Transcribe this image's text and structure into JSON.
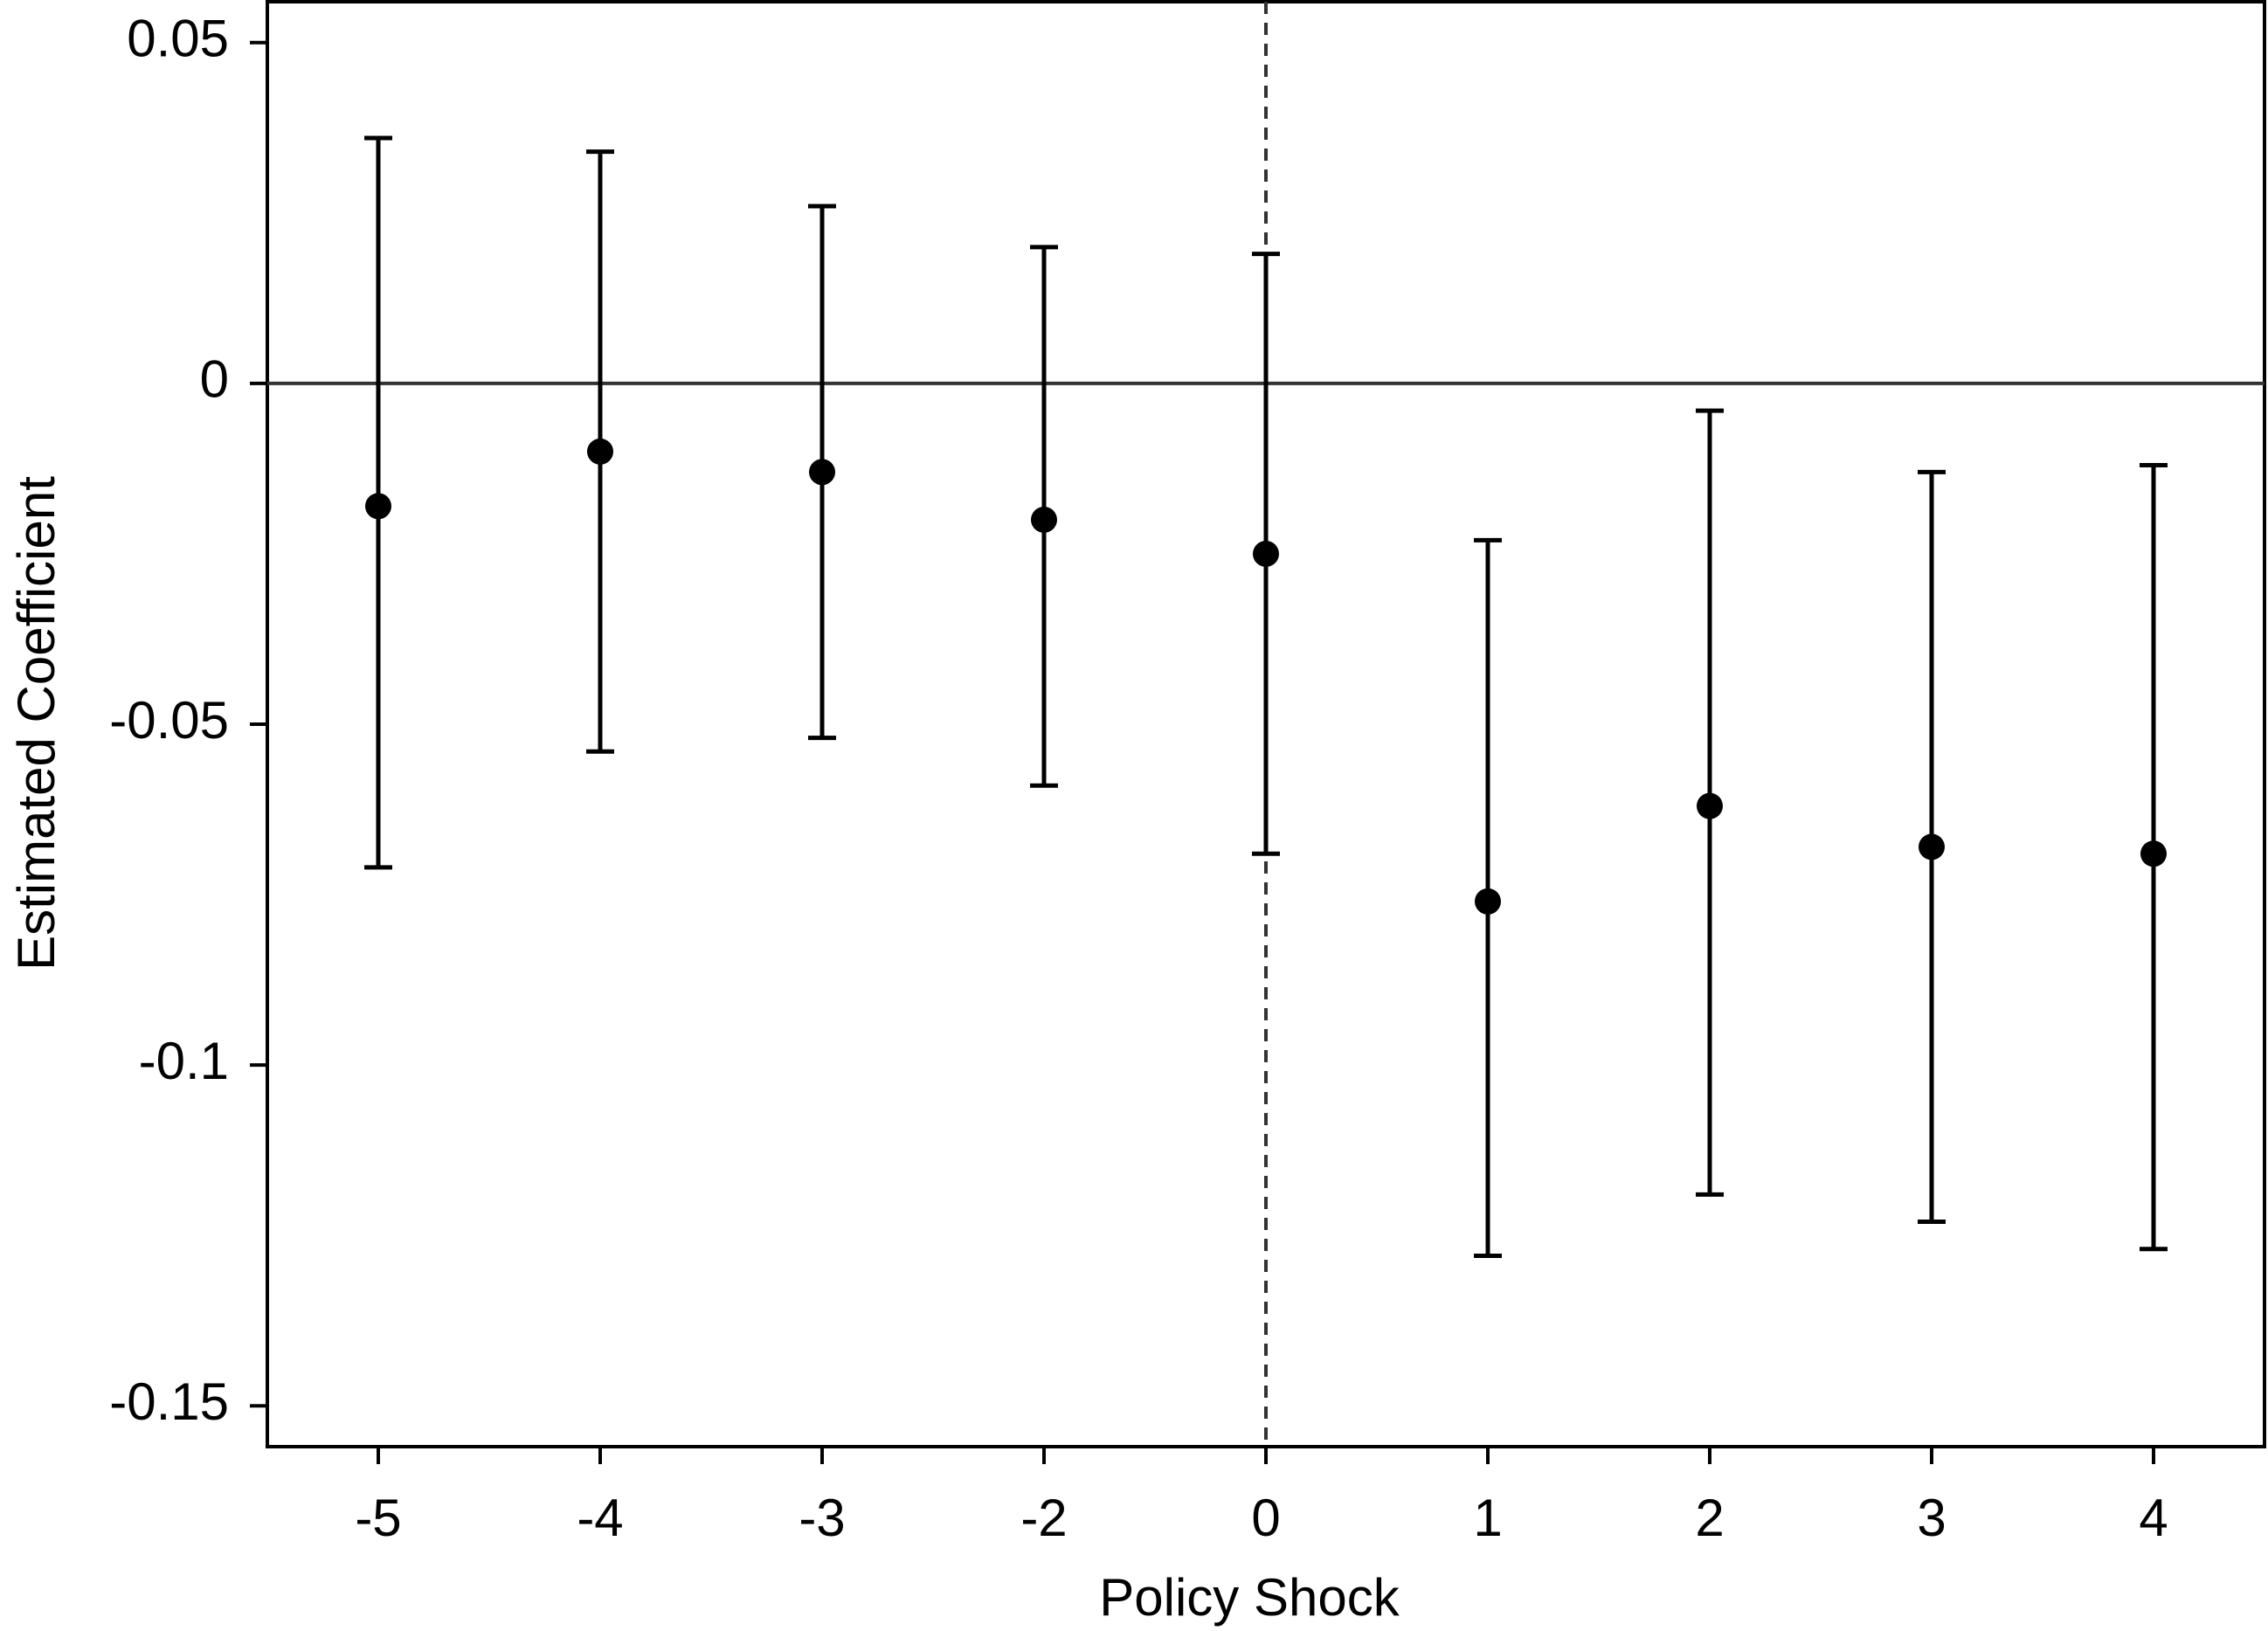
{
  "chart_data": {
    "type": "errorbar",
    "x_label": "Policy Shock",
    "y_label": "Estimated Coefficient",
    "categories": [
      "-5",
      "-4",
      "-3",
      "-2",
      "0",
      "1",
      "2",
      "3",
      "4"
    ],
    "values": [
      -0.018,
      -0.01,
      -0.013,
      -0.02,
      -0.025,
      -0.076,
      -0.062,
      -0.068,
      -0.069
    ],
    "ci_lower": [
      -0.071,
      -0.054,
      -0.052,
      -0.059,
      -0.069,
      -0.128,
      -0.119,
      -0.123,
      -0.127
    ],
    "ci_upper": [
      0.036,
      0.034,
      0.026,
      0.02,
      0.019,
      -0.023,
      -0.004,
      -0.013,
      -0.012
    ],
    "color": "#000000",
    "ylim": [
      -0.156,
      0.056
    ],
    "yticks": [
      0.05,
      0,
      -0.05,
      -0.1,
      -0.15
    ],
    "reference_lines": {
      "x": "0",
      "y": 0
    },
    "grid": false
  }
}
